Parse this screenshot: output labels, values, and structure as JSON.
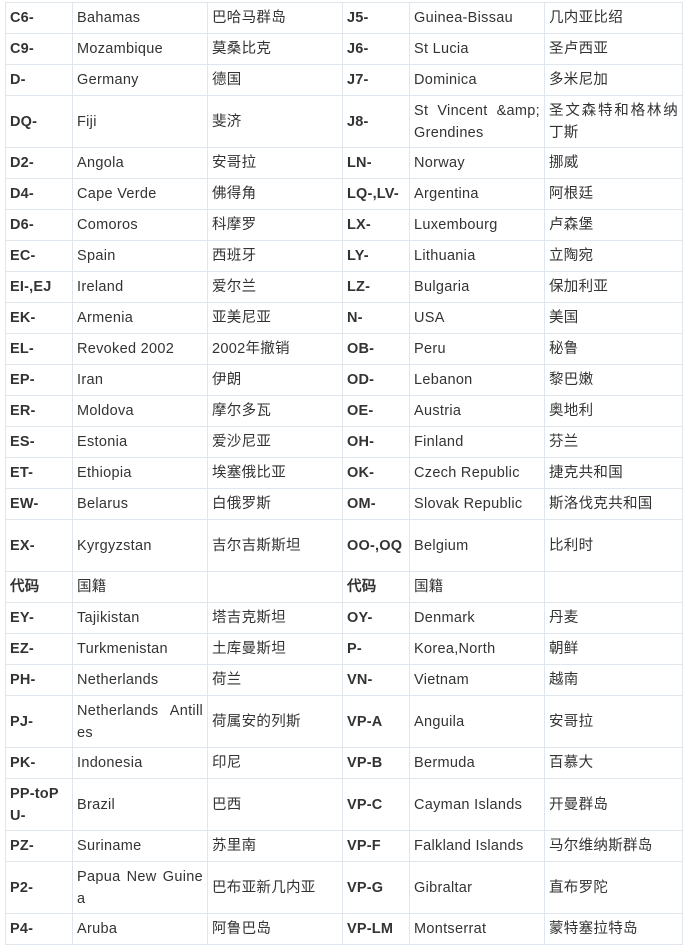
{
  "table": {
    "rows": [
      [
        "C6-",
        "Bahamas",
        "巴哈马群岛",
        "J5-",
        "Guinea-Bissau",
        "几内亚比绍"
      ],
      [
        "C9-",
        "Mozambique",
        "莫桑比克",
        "J6-",
        "St Lucia",
        "圣卢西亚"
      ],
      [
        "D-",
        "Germany",
        "德国",
        "J7-",
        "Dominica",
        "多米尼加"
      ],
      [
        "DQ-",
        "Fiji",
        "斐济",
        "J8-",
        "St Vincent &amp; Grendines",
        "圣文森特和格林纳丁斯"
      ],
      [
        "D2-",
        "Angola",
        "安哥拉",
        "LN-",
        "Norway",
        "挪威"
      ],
      [
        "D4-",
        "Cape Verde",
        "佛得角",
        "LQ-,LV-",
        "Argentina",
        "阿根廷"
      ],
      [
        "D6-",
        "Comoros",
        "科摩罗",
        "LX-",
        "Luxembourg",
        "卢森堡"
      ],
      [
        "EC-",
        "Spain",
        "西班牙",
        "LY-",
        "Lithuania",
        "立陶宛"
      ],
      [
        "EI-,EJ",
        "Ireland",
        "爱尔兰",
        "LZ-",
        "Bulgaria",
        "保加利亚"
      ],
      [
        "EK-",
        "Armenia",
        "亚美尼亚",
        "N-",
        "USA",
        "美国"
      ],
      [
        "EL-",
        "Revoked 2002",
        "2002年撤销",
        "OB-",
        "Peru",
        "秘鲁"
      ],
      [
        "EP-",
        "Iran",
        "伊朗",
        "OD-",
        "Lebanon",
        "黎巴嫩"
      ],
      [
        "ER-",
        "Moldova",
        "摩尔多瓦",
        "OE-",
        "Austria",
        "奥地利"
      ],
      [
        "ES-",
        "Estonia",
        "爱沙尼亚",
        "OH-",
        "Finland",
        "芬兰"
      ],
      [
        "ET-",
        "Ethiopia",
        "埃塞俄比亚",
        "OK-",
        "Czech Republic",
        "捷克共和国"
      ],
      [
        "EW-",
        "Belarus",
        "白俄罗斯",
        "OM-",
        "Slovak Republic",
        "斯洛伐克共和国"
      ],
      [
        "EX-",
        "Kyrgyzstan",
        "吉尔吉斯斯坦",
        "OO-,OQ",
        "Belgium",
        "比利时"
      ],
      [
        "代码",
        "国籍",
        "",
        "代码",
        "国籍",
        ""
      ],
      [
        "EY-",
        "Tajikistan",
        "塔吉克斯坦",
        "OY-",
        "Denmark",
        "丹麦"
      ],
      [
        "EZ-",
        "Turkmenistan",
        "土库曼斯坦",
        "P-",
        "Korea,North",
        "朝鲜"
      ],
      [
        "PH-",
        "Netherlands",
        "荷兰",
        "VN-",
        "Vietnam",
        "越南"
      ],
      [
        "PJ-",
        "Netherlands Antilles",
        "荷属安的列斯",
        "VP-A",
        "Anguila",
        "安哥拉"
      ],
      [
        "PK-",
        "Indonesia",
        "印尼",
        "VP-B",
        "Bermuda",
        "百慕大"
      ],
      [
        "PP-toPU-",
        "Brazil",
        "巴西",
        "VP-C",
        "Cayman Islands",
        "开曼群岛"
      ],
      [
        "PZ-",
        "Suriname",
        "苏里南",
        "VP-F",
        "Falkland Islands",
        "马尔维纳斯群岛"
      ],
      [
        "P2-",
        "Papua New Guinea",
        "巴布亚新几内亚",
        "VP-G",
        "Gibraltar",
        "直布罗陀"
      ],
      [
        "P4-",
        "Aruba",
        "阿鲁巴岛",
        "VP-LM",
        "Montserrat",
        "蒙特塞拉特岛"
      ]
    ]
  }
}
